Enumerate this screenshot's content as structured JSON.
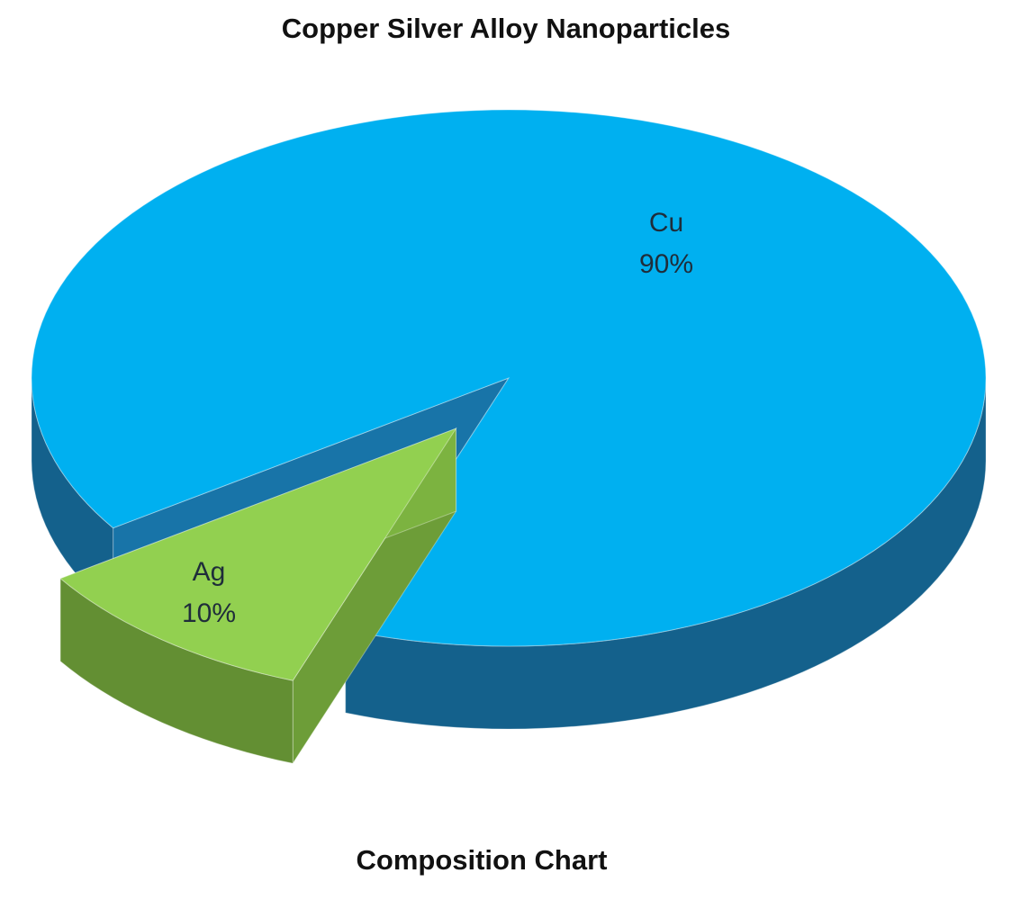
{
  "chart_data": {
    "type": "pie",
    "style": "3d-exploded",
    "title": "Copper Silver Alloy Nanoparticles",
    "subtitle": "Composition Chart",
    "slices": [
      {
        "label": "Cu",
        "value": 90,
        "value_label": "90%",
        "color": "#00b0f0",
        "side_color": "#14618c",
        "exploded": false
      },
      {
        "label": "Ag",
        "value": 10,
        "value_label": "10%",
        "color": "#92d050",
        "side_color": "#638f33",
        "exploded": true
      }
    ],
    "legend": "none"
  }
}
